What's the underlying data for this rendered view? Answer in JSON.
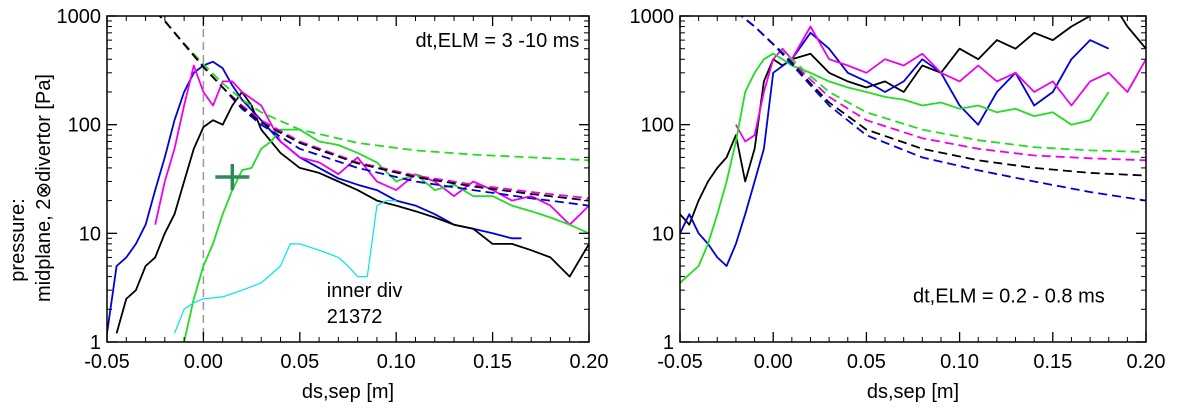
{
  "ylabel_line1": "pressure:",
  "ylabel_line2": "midplane, 2⊗divertor  [Pa]",
  "chart_data": [
    {
      "type": "line",
      "yscale": "log",
      "xlabel": "ds,sep [m]",
      "xlim": [
        -0.05,
        0.2
      ],
      "ylim": [
        1,
        1000
      ],
      "xticks": [
        "-0.05",
        "0.00",
        "0.05",
        "0.10",
        "0.15",
        "0.20"
      ],
      "yticks": [
        "1",
        "10",
        "100",
        "1000"
      ],
      "annotations": [
        {
          "text": "dt,ELM = 3 -10 ms",
          "x": 0.11,
          "y": 520
        },
        {
          "text": "inner div",
          "x": 0.064,
          "y": 2.6,
          "color": "#00e5ee"
        },
        {
          "text": "21372",
          "x": 0.064,
          "y": 1.5,
          "color": "#00e5ee"
        }
      ],
      "vline": {
        "x": 0.0,
        "style": "dashed",
        "color": "#999999"
      },
      "marker": {
        "shape": "plus",
        "x": 0.015,
        "y": 33,
        "color": "#2e8b57"
      },
      "series": [
        {
          "color": "#0000dd",
          "style": "solid",
          "x": [
            -0.05,
            -0.045,
            -0.04,
            -0.035,
            -0.03,
            -0.025,
            -0.02,
            -0.015,
            -0.01,
            -0.005,
            0.0,
            0.005,
            0.01,
            0.015,
            0.02,
            0.03,
            0.04,
            0.05,
            0.06,
            0.07,
            0.08,
            0.09,
            0.1,
            0.11,
            0.12,
            0.13,
            0.14,
            0.15,
            0.16,
            0.165
          ],
          "y": [
            1.2,
            5,
            6,
            8,
            12,
            25,
            50,
            110,
            200,
            300,
            350,
            380,
            330,
            230,
            170,
            110,
            70,
            50,
            40,
            32,
            28,
            25,
            20,
            18,
            15,
            12,
            11,
            10,
            9,
            9
          ]
        },
        {
          "color": "#000000",
          "style": "solid",
          "x": [
            -0.045,
            -0.04,
            -0.035,
            -0.03,
            -0.025,
            -0.02,
            -0.015,
            -0.01,
            -0.005,
            0.0,
            0.005,
            0.01,
            0.015,
            0.02,
            0.025,
            0.03,
            0.04,
            0.05,
            0.06,
            0.07,
            0.08,
            0.09,
            0.1,
            0.11,
            0.12,
            0.13,
            0.14,
            0.15,
            0.16,
            0.17,
            0.18,
            0.19,
            0.2
          ],
          "y": [
            1.2,
            2.5,
            3,
            5,
            6,
            10,
            15,
            30,
            60,
            95,
            110,
            100,
            150,
            200,
            150,
            90,
            55,
            40,
            36,
            30,
            25,
            20,
            18,
            16,
            14,
            12,
            11,
            8,
            8,
            7,
            6,
            4,
            8
          ]
        },
        {
          "color": "#ee00ee",
          "style": "solid",
          "x": [
            -0.025,
            -0.02,
            -0.015,
            -0.01,
            -0.005,
            0.0,
            0.005,
            0.01,
            0.015,
            0.02,
            0.03,
            0.04,
            0.05,
            0.06,
            0.07,
            0.08,
            0.09,
            0.1,
            0.11,
            0.12,
            0.13,
            0.14,
            0.15,
            0.16,
            0.17,
            0.18,
            0.19,
            0.2
          ],
          "y": [
            12,
            30,
            60,
            150,
            350,
            200,
            150,
            250,
            250,
            200,
            150,
            70,
            50,
            45,
            35,
            50,
            30,
            25,
            35,
            30,
            22,
            30,
            25,
            20,
            22,
            18,
            12,
            18
          ]
        },
        {
          "color": "#22dd22",
          "style": "solid",
          "x": [
            -0.01,
            -0.005,
            0.0,
            0.005,
            0.01,
            0.015,
            0.02,
            0.025,
            0.03,
            0.035,
            0.04,
            0.05,
            0.06,
            0.07,
            0.08,
            0.09,
            0.1,
            0.11,
            0.12,
            0.13,
            0.14,
            0.15,
            0.16,
            0.17,
            0.18,
            0.19,
            0.2
          ],
          "y": [
            1,
            2.5,
            5,
            8,
            15,
            25,
            38,
            40,
            60,
            70,
            90,
            90,
            70,
            65,
            55,
            45,
            30,
            35,
            25,
            28,
            22,
            22,
            18,
            16,
            14,
            12,
            10
          ]
        },
        {
          "color": "#00e5ee",
          "style": "solid",
          "x": [
            -0.015,
            -0.01,
            -0.005,
            0.0,
            0.01,
            0.02,
            0.03,
            0.04,
            0.045,
            0.05,
            0.06,
            0.07,
            0.075,
            0.08,
            0.085,
            0.09,
            0.095,
            0.1
          ],
          "y": [
            1.2,
            2,
            2.3,
            2.5,
            2.6,
            3,
            3.5,
            5,
            8,
            8,
            7,
            6,
            5,
            4,
            4,
            18,
            20,
            20
          ]
        },
        {
          "color": "#22dd22",
          "style": "dashed",
          "x": [
            -0.025,
            -0.02,
            -0.01,
            0.0,
            0.01,
            0.02,
            0.03,
            0.05,
            0.08,
            0.11,
            0.14,
            0.17,
            0.2
          ],
          "y": [
            1100,
            900,
            560,
            360,
            240,
            170,
            130,
            90,
            68,
            58,
            53,
            50,
            47
          ]
        },
        {
          "color": "#0000dd",
          "style": "dashed",
          "x": [
            -0.025,
            -0.02,
            -0.01,
            0.0,
            0.01,
            0.02,
            0.03,
            0.05,
            0.08,
            0.11,
            0.14,
            0.17,
            0.2
          ],
          "y": [
            1100,
            900,
            550,
            340,
            220,
            140,
            100,
            60,
            40,
            30,
            25,
            21,
            18
          ]
        },
        {
          "color": "#ee00ee",
          "style": "dashed",
          "x": [
            -0.025,
            -0.02,
            -0.01,
            0.0,
            0.01,
            0.02,
            0.03,
            0.05,
            0.08,
            0.11,
            0.14,
            0.17,
            0.2
          ],
          "y": [
            1100,
            900,
            550,
            340,
            220,
            150,
            110,
            70,
            45,
            34,
            28,
            24,
            21
          ]
        },
        {
          "color": "#000000",
          "style": "dashed",
          "x": [
            -0.025,
            -0.02,
            -0.01,
            0.0,
            0.01,
            0.02,
            0.03,
            0.05,
            0.08,
            0.11,
            0.14,
            0.17,
            0.2
          ],
          "y": [
            1100,
            900,
            550,
            340,
            220,
            145,
            105,
            68,
            44,
            33,
            27,
            23,
            20
          ]
        }
      ]
    },
    {
      "type": "line",
      "yscale": "log",
      "xlabel": "ds,sep [m]",
      "xlim": [
        -0.05,
        0.2
      ],
      "ylim": [
        1,
        1000
      ],
      "xticks": [
        "-0.05",
        "0.00",
        "0.05",
        "0.10",
        "0.15",
        "0.20"
      ],
      "yticks": [
        "1",
        "10",
        "100",
        "1000"
      ],
      "annotations": [
        {
          "text": "dt,ELM = 0.2 - 0.8 ms",
          "x": 0.075,
          "y": 2.3
        }
      ],
      "series": [
        {
          "color": "#000000",
          "style": "solid",
          "x": [
            -0.05,
            -0.045,
            -0.04,
            -0.035,
            -0.03,
            -0.025,
            -0.02,
            -0.015,
            -0.01,
            -0.005,
            0.0,
            0.005,
            0.01,
            0.02,
            0.03,
            0.04,
            0.05,
            0.06,
            0.07,
            0.08,
            0.09,
            0.1,
            0.11,
            0.12,
            0.13,
            0.14,
            0.15,
            0.16,
            0.17,
            0.18,
            0.19,
            0.2
          ],
          "y": [
            15,
            12,
            20,
            30,
            40,
            50,
            80,
            30,
            60,
            250,
            400,
            350,
            400,
            450,
            300,
            250,
            220,
            250,
            200,
            350,
            300,
            500,
            400,
            600,
            500,
            700,
            600,
            800,
            1000,
            1500,
            800,
            500
          ]
        },
        {
          "color": "#0000dd",
          "style": "solid",
          "x": [
            -0.05,
            -0.045,
            -0.04,
            -0.035,
            -0.03,
            -0.025,
            -0.02,
            -0.015,
            -0.01,
            -0.005,
            0.0,
            0.01,
            0.02,
            0.03,
            0.04,
            0.05,
            0.06,
            0.07,
            0.08,
            0.09,
            0.1,
            0.11,
            0.12,
            0.13,
            0.14,
            0.15,
            0.16,
            0.17,
            0.18
          ],
          "y": [
            10,
            15,
            10,
            8,
            6,
            5,
            8,
            15,
            30,
            60,
            300,
            400,
            700,
            500,
            300,
            250,
            200,
            250,
            400,
            300,
            150,
            100,
            200,
            300,
            150,
            200,
            400,
            600,
            500
          ]
        },
        {
          "color": "#ee00ee",
          "style": "solid",
          "x": [
            -0.02,
            -0.015,
            -0.01,
            -0.005,
            0.0,
            0.005,
            0.01,
            0.02,
            0.03,
            0.04,
            0.05,
            0.06,
            0.07,
            0.08,
            0.09,
            0.1,
            0.11,
            0.12,
            0.13,
            0.14,
            0.15,
            0.16,
            0.17,
            0.18,
            0.19,
            0.2
          ],
          "y": [
            100,
            70,
            80,
            200,
            400,
            500,
            400,
            800,
            400,
            350,
            300,
            400,
            350,
            450,
            300,
            250,
            350,
            250,
            300,
            200,
            250,
            150,
            250,
            300,
            200,
            400
          ]
        },
        {
          "color": "#22dd22",
          "style": "solid",
          "x": [
            -0.05,
            -0.04,
            -0.035,
            -0.03,
            -0.025,
            -0.02,
            -0.015,
            -0.01,
            -0.005,
            0.0,
            0.005,
            0.01,
            0.02,
            0.03,
            0.04,
            0.05,
            0.06,
            0.07,
            0.08,
            0.09,
            0.1,
            0.11,
            0.12,
            0.13,
            0.14,
            0.15,
            0.16,
            0.17,
            0.18
          ],
          "y": [
            3.5,
            5,
            8,
            15,
            30,
            70,
            200,
            300,
            400,
            450,
            400,
            350,
            300,
            250,
            220,
            200,
            180,
            170,
            150,
            160,
            140,
            150,
            130,
            140,
            120,
            130,
            100,
            110,
            200
          ]
        },
        {
          "color": "#22dd22",
          "style": "dashed",
          "x": [
            -0.02,
            -0.01,
            0.0,
            0.01,
            0.02,
            0.03,
            0.05,
            0.08,
            0.11,
            0.14,
            0.17,
            0.2
          ],
          "y": [
            1100,
            800,
            550,
            400,
            280,
            200,
            130,
            90,
            72,
            62,
            58,
            56
          ]
        },
        {
          "color": "#ee00ee",
          "style": "dashed",
          "x": [
            -0.02,
            -0.01,
            0.0,
            0.01,
            0.02,
            0.03,
            0.05,
            0.08,
            0.11,
            0.14,
            0.17,
            0.2
          ],
          "y": [
            1100,
            800,
            550,
            380,
            260,
            180,
            110,
            75,
            60,
            52,
            49,
            47
          ]
        },
        {
          "color": "#000000",
          "style": "dashed",
          "x": [
            -0.02,
            -0.01,
            0.0,
            0.01,
            0.02,
            0.03,
            0.05,
            0.08,
            0.11,
            0.14,
            0.17,
            0.2
          ],
          "y": [
            1100,
            800,
            550,
            370,
            240,
            160,
            90,
            60,
            47,
            40,
            36,
            34
          ]
        },
        {
          "color": "#0000dd",
          "style": "dashed",
          "x": [
            -0.02,
            -0.01,
            0.0,
            0.01,
            0.02,
            0.03,
            0.05,
            0.08,
            0.11,
            0.14,
            0.17,
            0.2
          ],
          "y": [
            1100,
            800,
            550,
            360,
            230,
            150,
            80,
            50,
            38,
            30,
            24,
            20
          ]
        }
      ]
    }
  ]
}
